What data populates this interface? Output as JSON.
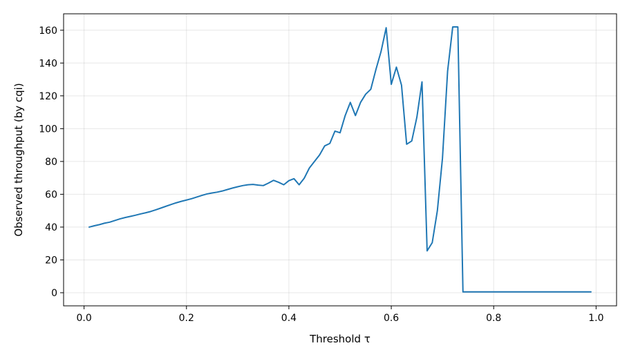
{
  "chart_data": {
    "type": "line",
    "title": "",
    "xlabel": "Threshold τ",
    "ylabel": "Observed throughput (by cqi)",
    "xlim": [
      -0.04,
      1.04
    ],
    "ylim": [
      -8,
      170
    ],
    "xticks": [
      0.0,
      0.2,
      0.4,
      0.6,
      0.8,
      1.0
    ],
    "xtick_labels": [
      "0.0",
      "0.2",
      "0.4",
      "0.6",
      "0.8",
      "1.0"
    ],
    "yticks": [
      0,
      20,
      40,
      60,
      80,
      100,
      120,
      140,
      160
    ],
    "ytick_labels": [
      "0",
      "20",
      "40",
      "60",
      "80",
      "100",
      "120",
      "140",
      "160"
    ],
    "grid": true,
    "line_color": "#1f77b4",
    "series": [
      {
        "x": [
          0.01,
          0.02,
          0.03,
          0.04,
          0.05,
          0.06,
          0.07,
          0.08,
          0.09,
          0.1,
          0.11,
          0.12,
          0.13,
          0.14,
          0.15,
          0.16,
          0.17,
          0.18,
          0.19,
          0.2,
          0.21,
          0.22,
          0.23,
          0.24,
          0.25,
          0.26,
          0.27,
          0.28,
          0.29,
          0.3,
          0.31,
          0.32,
          0.33,
          0.34,
          0.35,
          0.36,
          0.37,
          0.38,
          0.39,
          0.4,
          0.41,
          0.42,
          0.43,
          0.44,
          0.45,
          0.46,
          0.47,
          0.48,
          0.49,
          0.5,
          0.51,
          0.52,
          0.53,
          0.54,
          0.55,
          0.56,
          0.57,
          0.58,
          0.59,
          0.6,
          0.61,
          0.62,
          0.63,
          0.64,
          0.65,
          0.66,
          0.67,
          0.68,
          0.69,
          0.7,
          0.71,
          0.72,
          0.73,
          0.74,
          0.75,
          0.76,
          0.77,
          0.78,
          0.79,
          0.8,
          0.81,
          0.82,
          0.83,
          0.84,
          0.85,
          0.86,
          0.87,
          0.88,
          0.89,
          0.9,
          0.91,
          0.92,
          0.93,
          0.94,
          0.95,
          0.96,
          0.97,
          0.98,
          0.99
        ],
        "y": [
          40,
          40.8,
          41.5,
          42.4,
          43,
          44,
          45,
          45.8,
          46.5,
          47.2,
          48,
          48.7,
          49.5,
          50.5,
          51.6,
          52.7,
          53.8,
          54.8,
          55.7,
          56.5,
          57.3,
          58.3,
          59.3,
          60.2,
          60.8,
          61.3,
          62,
          62.9,
          63.8,
          64.6,
          65.3,
          65.8,
          66,
          65.6,
          65.3,
          66.8,
          68.5,
          67.3,
          65.8,
          68.3,
          69.5,
          65.8,
          69.8,
          76,
          80,
          84,
          89.5,
          91,
          98.5,
          97.5,
          108,
          116,
          108,
          116,
          121,
          124,
          136,
          147,
          161.5,
          127,
          137.5,
          126.5,
          90.5,
          92.5,
          107,
          128.5,
          25.5,
          30.5,
          50,
          82,
          135,
          162,
          162,
          0.5,
          0.5,
          0.5,
          0.5,
          0.5,
          0.5,
          0.5,
          0.5,
          0.5,
          0.5,
          0.5,
          0.5,
          0.5,
          0.5,
          0.5,
          0.5,
          0.5,
          0.5,
          0.5,
          0.5,
          0.5,
          0.5,
          0.5,
          0.5,
          0.5,
          0.5
        ]
      }
    ]
  }
}
